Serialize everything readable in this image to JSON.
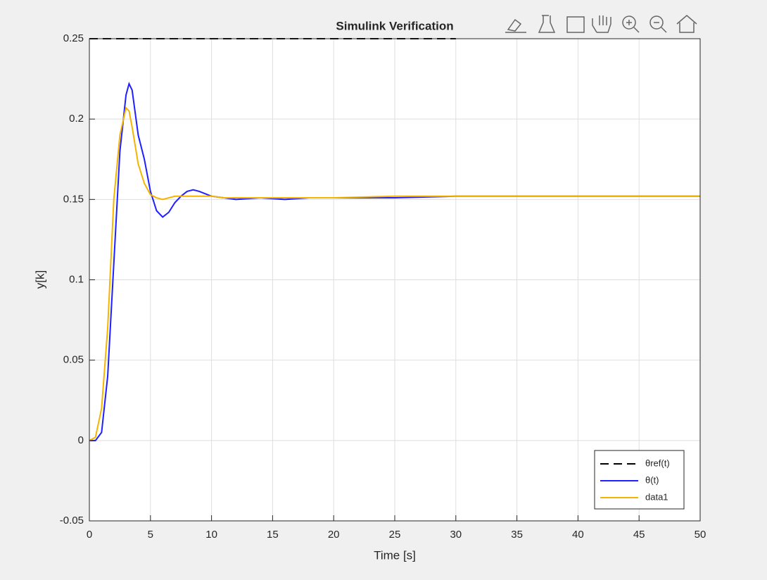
{
  "chart_data": {
    "type": "line",
    "title": "Simulink Verification",
    "xlabel": "Time [s]",
    "ylabel": "y[k]",
    "xlim": [
      0,
      50
    ],
    "ylim": [
      -0.05,
      0.25
    ],
    "xticks": [
      0,
      5,
      10,
      15,
      20,
      25,
      30,
      35,
      40,
      45,
      50
    ],
    "yticks": [
      -0.05,
      0,
      0.05,
      0.1,
      0.15,
      0.2,
      0.25
    ],
    "grid": true,
    "legend": "lower right",
    "series": [
      {
        "name": "θref(t)",
        "color": "#000000",
        "dash": true,
        "x": [
          0,
          30
        ],
        "values": [
          0.25,
          0.25
        ]
      },
      {
        "name": "θ(t)",
        "color": "#1f1fff",
        "x": [
          0,
          0.5,
          1,
          1.5,
          2,
          2.5,
          3,
          3.25,
          3.5,
          4,
          4.5,
          5,
          5.5,
          6,
          6.5,
          7,
          7.5,
          8,
          8.5,
          9,
          10,
          11,
          12,
          14,
          16,
          18,
          20,
          25,
          30,
          35,
          40,
          45,
          50
        ],
        "values": [
          0,
          0,
          0.005,
          0.04,
          0.11,
          0.18,
          0.215,
          0.222,
          0.218,
          0.19,
          0.175,
          0.155,
          0.143,
          0.139,
          0.142,
          0.148,
          0.152,
          0.155,
          0.156,
          0.155,
          0.152,
          0.151,
          0.15,
          0.151,
          0.15,
          0.151,
          0.151,
          0.151,
          0.152,
          0.152,
          0.152,
          0.152,
          0.152
        ]
      },
      {
        "name": "data1",
        "color": "#f5b400",
        "x": [
          0,
          0.5,
          1,
          1.5,
          2,
          2.5,
          3,
          3.25,
          3.5,
          4,
          4.5,
          5,
          5.5,
          6,
          6.5,
          7,
          7.5,
          8,
          8.5,
          9,
          10,
          11,
          12,
          14,
          16,
          18,
          20,
          25,
          30,
          35,
          40,
          45,
          50
        ],
        "values": [
          0,
          0.002,
          0.02,
          0.07,
          0.15,
          0.19,
          0.207,
          0.205,
          0.195,
          0.172,
          0.16,
          0.153,
          0.151,
          0.15,
          0.151,
          0.152,
          0.152,
          0.152,
          0.152,
          0.152,
          0.152,
          0.151,
          0.151,
          0.151,
          0.151,
          0.151,
          0.151,
          0.152,
          0.152,
          0.152,
          0.152,
          0.152,
          0.152
        ]
      }
    ]
  }
}
